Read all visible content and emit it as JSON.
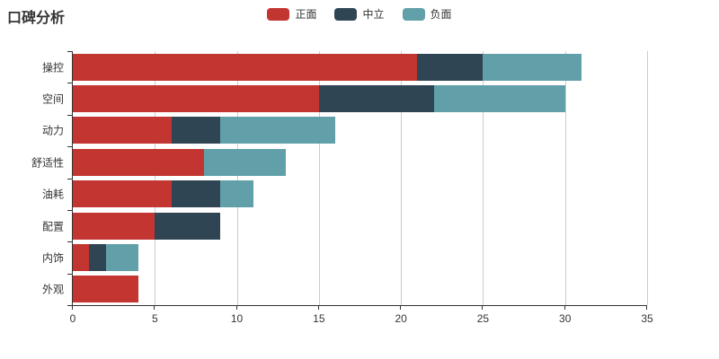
{
  "header": {
    "title": "口碑分析"
  },
  "chart_data": {
    "type": "bar",
    "orientation": "horizontal",
    "stacked": true,
    "title": "口碑分析",
    "categories": [
      "操控",
      "空间",
      "动力",
      "舒适性",
      "油耗",
      "配置",
      "内饰",
      "外观"
    ],
    "series": [
      {
        "name": "正面",
        "color": "#c23531",
        "values": [
          21,
          15,
          6,
          8,
          6,
          5,
          1,
          4
        ]
      },
      {
        "name": "中立",
        "color": "#2f4554",
        "values": [
          4,
          7,
          3,
          0,
          3,
          4,
          1,
          0
        ]
      },
      {
        "name": "负面",
        "color": "#61a0a8",
        "values": [
          6,
          8,
          7,
          5,
          2,
          0,
          2,
          0
        ]
      }
    ],
    "totals": [
      31,
      30,
      16,
      13,
      11,
      9,
      4,
      4
    ],
    "xlabel": "",
    "ylabel": "",
    "xlim": [
      0,
      35
    ],
    "x_ticks": [
      0,
      5,
      10,
      15,
      20,
      25,
      30,
      35
    ],
    "grid": true,
    "legend_position": "top",
    "colors": {
      "grid": "#cccccc",
      "axis": "#333333",
      "label": "#333333"
    }
  }
}
